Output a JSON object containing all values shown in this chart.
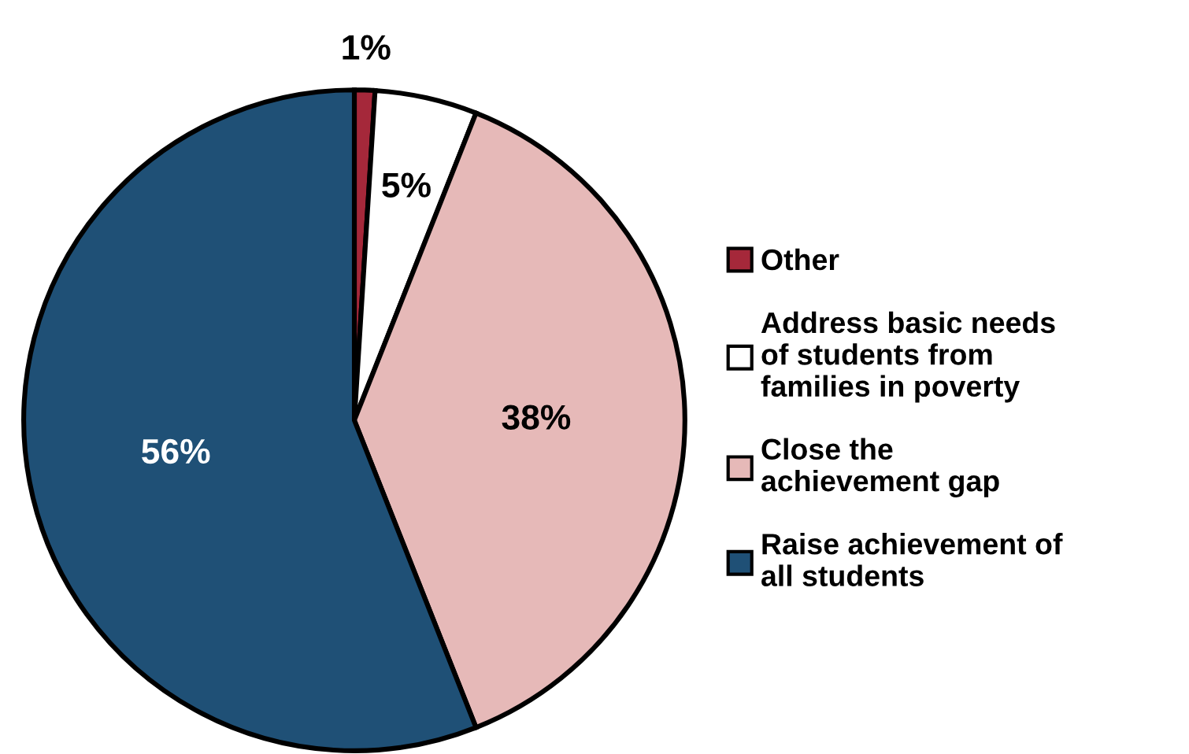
{
  "chart_data": {
    "type": "pie",
    "categories": [
      "Other",
      "Address basic needs\nof students from\nfamilies in poverty",
      "Close the\nachievement gap",
      "Raise achievement of\nall students"
    ],
    "values": [
      1,
      5,
      38,
      56
    ],
    "colors": [
      "#a5283a",
      "#ffffff",
      "#e6b9b8",
      "#1f5076"
    ],
    "value_labels": [
      "1%",
      "5%",
      "38%",
      "56%"
    ],
    "legend": "right"
  }
}
